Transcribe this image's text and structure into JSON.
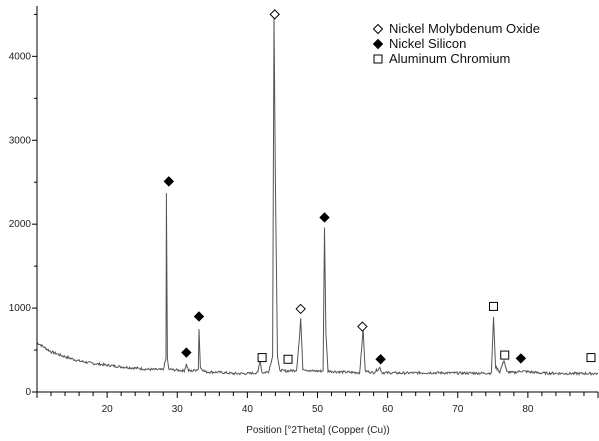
{
  "chart_data": {
    "type": "line",
    "title": "",
    "xlabel": "Position [°2Theta] (Copper (Cu))",
    "ylabel": "",
    "xlim": [
      10,
      90
    ],
    "ylim": [
      0,
      4600
    ],
    "x_ticks": [
      20,
      30,
      40,
      50,
      60,
      70,
      80
    ],
    "y_ticks": [
      0,
      1000,
      2000,
      3000,
      4000
    ],
    "grid": false,
    "legend_position": "top-right",
    "line_color": "#555555",
    "series": [
      {
        "x": [
          10,
          12,
          14,
          16,
          18,
          20,
          22,
          24,
          26,
          28,
          28.4,
          28.45,
          28.6,
          28.8,
          30,
          31,
          31.3,
          31.6,
          32,
          33,
          33.1,
          33.3,
          34,
          36,
          38,
          40,
          41.5,
          41.8,
          42.1,
          43,
          43.6,
          43.8,
          44.0,
          44.3,
          44.6,
          45.5,
          47,
          47.4,
          47.6,
          47.9,
          49,
          50.8,
          51.0,
          51.2,
          51.5,
          53,
          56,
          56.3,
          56.5,
          56.8,
          58,
          58.9,
          59.2,
          62,
          66,
          70,
          74.8,
          75.1,
          75.4,
          76,
          76.6,
          77,
          78,
          79,
          82,
          86,
          90
        ],
        "y": [
          590,
          480,
          420,
          370,
          340,
          320,
          300,
          285,
          270,
          265,
          400,
          2370,
          400,
          270,
          260,
          255,
          330,
          255,
          250,
          270,
          750,
          290,
          240,
          235,
          220,
          220,
          230,
          380,
          230,
          240,
          420,
          4480,
          2500,
          420,
          260,
          250,
          260,
          620,
          880,
          280,
          250,
          250,
          1960,
          700,
          250,
          240,
          230,
          520,
          760,
          250,
          230,
          290,
          230,
          225,
          230,
          225,
          225,
          890,
          300,
          240,
          380,
          240,
          230,
          250,
          225,
          220,
          220
        ]
      }
    ],
    "legend": [
      {
        "symbol": "diamond-open",
        "label": "Nickel Molybdenum Oxide"
      },
      {
        "symbol": "diamond-filled",
        "label": "Nickel Silicon"
      },
      {
        "symbol": "square-open",
        "label": "Aluminum Chromium"
      }
    ],
    "markers": [
      {
        "symbol": "diamond-filled",
        "x": 28.8,
        "y": 2510
      },
      {
        "symbol": "diamond-filled",
        "x": 31.3,
        "y": 470
      },
      {
        "symbol": "diamond-filled",
        "x": 33.1,
        "y": 900
      },
      {
        "symbol": "square-open",
        "x": 42.1,
        "y": 410
      },
      {
        "symbol": "diamond-open",
        "x": 43.9,
        "y": 4500
      },
      {
        "symbol": "square-open",
        "x": 45.8,
        "y": 390
      },
      {
        "symbol": "diamond-open",
        "x": 47.6,
        "y": 990
      },
      {
        "symbol": "diamond-filled",
        "x": 51.0,
        "y": 2080
      },
      {
        "symbol": "diamond-open",
        "x": 56.4,
        "y": 780
      },
      {
        "symbol": "diamond-filled",
        "x": 59.0,
        "y": 390
      },
      {
        "symbol": "square-open",
        "x": 75.1,
        "y": 1020
      },
      {
        "symbol": "square-open",
        "x": 76.7,
        "y": 440
      },
      {
        "symbol": "diamond-filled",
        "x": 79.0,
        "y": 400
      },
      {
        "symbol": "square-open",
        "x": 89.0,
        "y": 410
      }
    ]
  }
}
